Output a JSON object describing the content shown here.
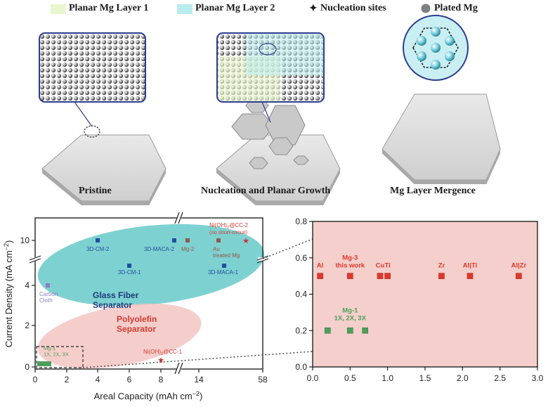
{
  "legend": {
    "layer1": "Planar Mg Layer 1",
    "layer2": "Planar Mg Layer 2",
    "nucleation": "Nucleation sites",
    "plated": "Plated Mg",
    "colors": {
      "layer1": "#e9f6cf",
      "layer2": "#b9ecef",
      "plated": "#7f7f7f",
      "frame": "#2c3d8f"
    }
  },
  "stages": {
    "pristine": "Pristine",
    "nucleation": "Nucleation and Planar Growth",
    "mergence": "Mg Layer Mergence"
  },
  "left_chart": {
    "ylabel": "Current Density (mA cm",
    "ylabel_sup": "−2",
    "ylabel_close": ")",
    "xlabel": "Areal Capacity (mAh cm",
    "xlabel_sup": "−2",
    "xlabel_close": ")",
    "xticks": [
      "0",
      "2",
      "4",
      "6",
      "8",
      "14",
      "58"
    ],
    "yticks": [
      "0",
      "2",
      "4",
      "10"
    ],
    "regions": {
      "glass_fiber": "Glass Fiber\nSeparator",
      "polyolefin": "Polyolefin\nSeparator",
      "colors": {
        "glass_fiber": "#5ec5c5",
        "polyolefin": "#f3c5c2"
      }
    },
    "labels": {
      "cm2": "3D-CM-2",
      "cm1": "3D-CM-1",
      "maca2": "3D-MACA-2",
      "maca1": "3D-MACA-1",
      "mg2": "Mg-2",
      "au": "Au\ntreated Mg",
      "carbon": "Carbon\nCloth",
      "nicc2": "Ni(OH)",
      "nicc2_sub": "2",
      "nicc2_tail": "@CC-2",
      "nicc2_note": "(no short-circuit)",
      "nicc1": "Ni(OH)",
      "nicc1_sub": "2",
      "nicc1_tail": "@CC-1",
      "mg1": "Mg-1\n1X, 2X, 3X"
    }
  },
  "chart_data": {
    "type": "scatter",
    "xlabel": "Areal Capacity (mAh cm−2)",
    "ylabel": "Current Density (mA cm−2)",
    "xlim": [
      0,
      3.0
    ],
    "ylim": [
      0,
      0.8
    ],
    "xticks": [
      "0.0",
      "0.5",
      "1.0",
      "1.5",
      "2.0",
      "2.5",
      "3.0"
    ],
    "yticks": [
      "0.0",
      "0.2",
      "0.4",
      "0.6",
      "0.8"
    ],
    "background": "#f4cfcc",
    "series": [
      {
        "name": "red",
        "color": "#e1372a",
        "points": [
          {
            "label": "Al",
            "x": 0.1,
            "y": 0.5
          },
          {
            "label": "Mg-3\nthis work",
            "x": 0.5,
            "y": 0.5
          },
          {
            "label": "Cu",
            "x": 0.9,
            "y": 0.5
          },
          {
            "label": "Ti",
            "x": 1.0,
            "y": 0.5
          },
          {
            "label": "Zr",
            "x": 1.72,
            "y": 0.5
          },
          {
            "label": "Al|Ti",
            "x": 2.1,
            "y": 0.5
          },
          {
            "label": "Al|Zr",
            "x": 2.75,
            "y": 0.5
          }
        ]
      },
      {
        "name": "green",
        "color": "#4e9e5b",
        "label": "Mg-1\n1X, 2X, 3X",
        "points": [
          {
            "x": 0.2,
            "y": 0.2
          },
          {
            "x": 0.5,
            "y": 0.2
          },
          {
            "x": 0.7,
            "y": 0.2
          }
        ]
      }
    ]
  }
}
